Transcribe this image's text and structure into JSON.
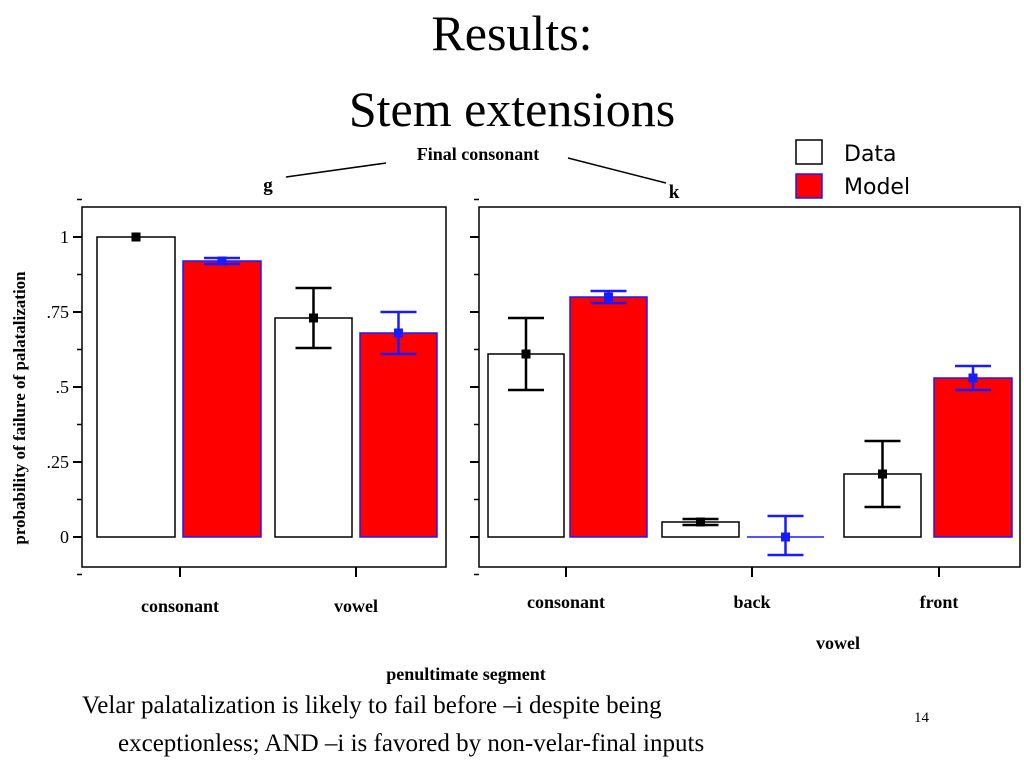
{
  "slide": {
    "title_line1": "Results:",
    "title_line2": "Stem extensions",
    "caption_line1": "Velar palatalization is likely to fail before –i despite being",
    "caption_line2": "exceptionless; AND –i is favored by non-velar-final inputs",
    "page_number": "14"
  },
  "chart_data": {
    "type": "bar",
    "ylabel": "probability of failure of palatalization",
    "xlabel": "penultimate segment",
    "facet_label": "Final consonant",
    "sub_xlabel": "vowel",
    "ylim": [
      -0.1,
      1.1
    ],
    "yticks": [
      0,
      0.25,
      0.5,
      0.75,
      1
    ],
    "ytick_labels": [
      "0",
      ".25",
      ".5",
      ".75",
      "1"
    ],
    "legend": {
      "placement": "top-right",
      "entries": [
        {
          "name": "Data",
          "color": "#ffffff"
        },
        {
          "name": "Model",
          "color": "#ff0000"
        }
      ]
    },
    "panels": [
      {
        "facet": "g",
        "categories": [
          "consonant",
          "vowel"
        ],
        "series": [
          {
            "name": "Data",
            "values": [
              1.0,
              0.73
            ],
            "err_low": [
              1.0,
              0.63
            ],
            "err_high": [
              1.0,
              0.83
            ]
          },
          {
            "name": "Model",
            "values": [
              0.92,
              0.68
            ],
            "err_low": [
              0.91,
              0.61
            ],
            "err_high": [
              0.93,
              0.75
            ]
          }
        ]
      },
      {
        "facet": "k",
        "categories": [
          "consonant",
          "back",
          "front"
        ],
        "series": [
          {
            "name": "Data",
            "values": [
              0.61,
              0.05,
              0.21
            ],
            "err_low": [
              0.49,
              0.04,
              0.1
            ],
            "err_high": [
              0.73,
              0.06,
              0.32
            ]
          },
          {
            "name": "Model",
            "values": [
              0.8,
              0.0,
              0.53
            ],
            "err_low": [
              0.78,
              -0.06,
              0.49
            ],
            "err_high": [
              0.82,
              0.07,
              0.57
            ]
          }
        ]
      }
    ]
  }
}
